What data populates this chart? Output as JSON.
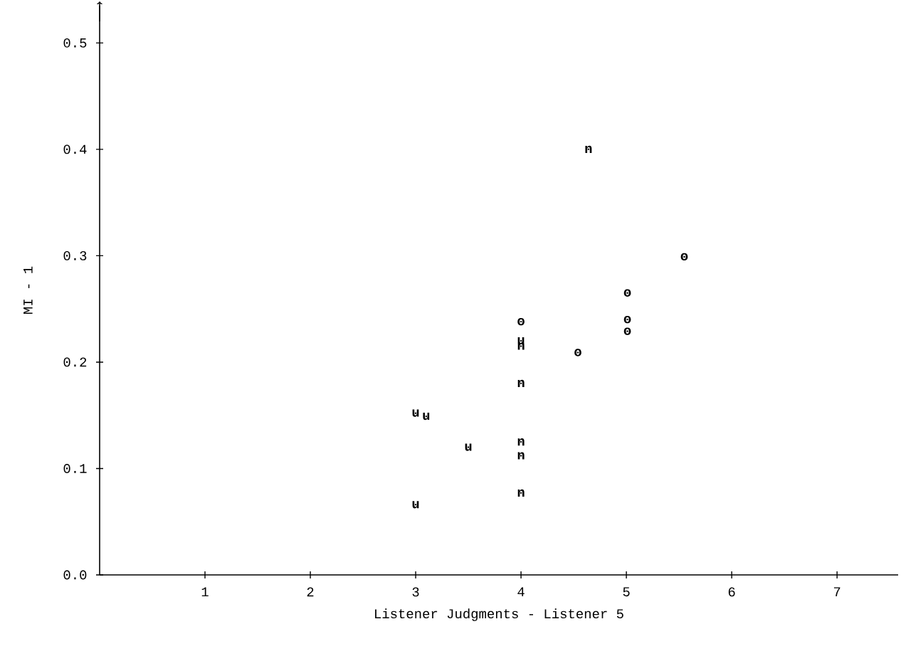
{
  "chart_data": {
    "type": "scatter",
    "xlabel": "Listener Judgments - Listener 5",
    "ylabel": "MI - 1",
    "xlim": [
      0,
      7.58
    ],
    "ylim": [
      0,
      0.535
    ],
    "xticks": [
      1,
      2,
      3,
      4,
      5,
      6,
      7
    ],
    "yticks": [
      {
        "value": 0,
        "label": "0.0"
      },
      {
        "value": 0.1,
        "label": "0.1"
      },
      {
        "value": 0.2,
        "label": "0.2"
      },
      {
        "value": 0.3,
        "label": "0.3"
      },
      {
        "value": 0.4,
        "label": "0.4"
      },
      {
        "value": 0.5,
        "label": "0.5"
      }
    ],
    "grid": false,
    "legend": false,
    "series": [
      {
        "name": "u",
        "color": "#000000",
        "x": [
          3.0,
          3.1,
          3.5,
          3.0,
          4.0
        ],
        "values": [
          0.152,
          0.149,
          0.12,
          0.066,
          0.22
        ]
      },
      {
        "name": "n",
        "color": "#000000",
        "x": [
          4.0,
          4.0,
          4.0,
          4.0,
          4.0,
          4.64
        ],
        "values": [
          0.215,
          0.18,
          0.125,
          0.112,
          0.077,
          0.4
        ]
      },
      {
        "name": "o",
        "color": "#000000",
        "x": [
          4.0,
          4.54,
          5.01,
          5.01,
          5.01,
          5.55
        ],
        "values": [
          0.238,
          0.209,
          0.265,
          0.24,
          0.229,
          0.299
        ]
      }
    ]
  }
}
